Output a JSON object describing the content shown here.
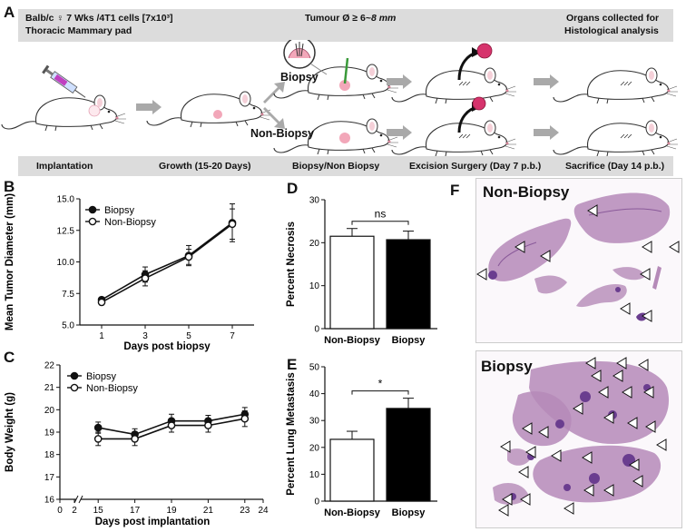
{
  "panels": {
    "a": "A",
    "b": "B",
    "c": "C",
    "d": "D",
    "e": "E",
    "f": "F"
  },
  "panel_a": {
    "band_left_line1": "Balb/c ♀ 7 Wks /4T1 cells [7x10³]",
    "band_left_line2": "Thoracic Mammary pad",
    "band_center_prefix": "Tumour Ø ≥ 6~",
    "band_center_value": "8 mm",
    "band_right_line1": "Organs  collected for",
    "band_right_line2": "Histological analysis",
    "label_biopsy": "Biopsy",
    "label_non_biopsy": "Non-Biopsy",
    "stages": [
      "Implantation",
      "Growth (15-20 Days)",
      "Biopsy/Non Biopsy",
      "Excision Surgery (Day 7 p.b.)",
      "Sacrifice (Day 14 p.b.)"
    ],
    "colors": {
      "band": "#dcdcdc",
      "arrow": "#a9a9a9",
      "tumor": "#f2a7b9",
      "excised": "#d6336c"
    }
  },
  "panel_f": {
    "title_top": "Non-Biopsy",
    "title_bottom": "Biopsy",
    "colors": {
      "tissue": "#b58ab8",
      "dense": "#6a3d8f",
      "background": "#fbf8fb"
    }
  },
  "chart_data": [
    {
      "id": "B",
      "type": "line",
      "xlabel": "Days post biopsy",
      "ylabel": "Mean Tumor Diameter (mm)",
      "x": [
        1,
        3,
        5,
        7
      ],
      "xlim": [
        0,
        8
      ],
      "ylim": [
        5.0,
        15.0
      ],
      "xticks": [
        "1",
        "3",
        "5",
        "7"
      ],
      "yticks": [
        "5.0",
        "7.5",
        "10.0",
        "12.5",
        "15.0"
      ],
      "legend": "top-left",
      "series": [
        {
          "name": "Biopsy",
          "marker": "filled",
          "values": [
            7.0,
            9.0,
            10.5,
            13.1
          ],
          "err": [
            0.2,
            0.6,
            0.8,
            1.5
          ]
        },
        {
          "name": "Non-Biopsy",
          "marker": "open",
          "values": [
            6.8,
            8.7,
            10.4,
            13.0
          ],
          "err": [
            0.2,
            0.6,
            0.6,
            1.2
          ]
        }
      ]
    },
    {
      "id": "C",
      "type": "line",
      "xlabel": "Days post implantation",
      "ylabel": "Body Weight (g)",
      "x": [
        15,
        17,
        19,
        21,
        23
      ],
      "xlim": [
        0,
        24
      ],
      "ylim": [
        16,
        22
      ],
      "xticks": [
        "0",
        "2",
        "15",
        "17",
        "19",
        "21",
        "23",
        "24"
      ],
      "yticks": [
        "16",
        "17",
        "18",
        "19",
        "20",
        "21",
        "22"
      ],
      "legend": "top-left",
      "series": [
        {
          "name": "Biopsy",
          "marker": "filled",
          "values": [
            19.2,
            18.9,
            19.5,
            19.5,
            19.8
          ],
          "err": [
            0.25,
            0.25,
            0.3,
            0.25,
            0.3
          ]
        },
        {
          "name": "Non-Biopsy",
          "marker": "open",
          "values": [
            18.7,
            18.7,
            19.3,
            19.3,
            19.6
          ],
          "err": [
            0.3,
            0.3,
            0.3,
            0.3,
            0.35
          ]
        }
      ]
    },
    {
      "id": "D",
      "type": "bar",
      "ylabel": "Percent Necrosis",
      "categories": [
        "Non-Biopsy",
        "Biopsy"
      ],
      "values": [
        21.5,
        20.7
      ],
      "err": [
        1.8,
        2.0
      ],
      "colors": [
        "#ffffff",
        "#000000"
      ],
      "ylim": [
        0,
        30
      ],
      "yticks": [
        "0",
        "10",
        "20",
        "30"
      ],
      "significance": "ns"
    },
    {
      "id": "E",
      "type": "bar",
      "ylabel": "Percent Lung Metastasis",
      "categories": [
        "Non-Biopsy",
        "Biopsy"
      ],
      "values": [
        23.0,
        34.5
      ],
      "err": [
        3.0,
        3.8
      ],
      "colors": [
        "#ffffff",
        "#000000"
      ],
      "ylim": [
        0,
        50
      ],
      "yticks": [
        "0",
        "10",
        "20",
        "30",
        "40",
        "50"
      ],
      "significance": "*"
    }
  ]
}
